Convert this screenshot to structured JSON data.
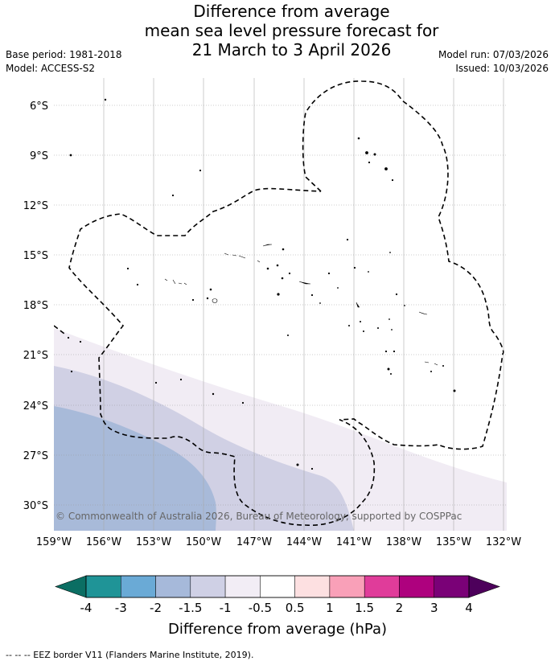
{
  "title": {
    "line1": "Difference from average",
    "line2": "mean sea level pressure forecast for",
    "line3": "21 March to 3 April 2026"
  },
  "meta": {
    "base_period": "Base period: 1981-2018",
    "model": "Model: ACCESS-S2",
    "model_run": "Model run: 07/03/2026",
    "issued": "Issued: 10/03/2026"
  },
  "map": {
    "lat_labels": [
      "6°S",
      "9°S",
      "12°S",
      "15°S",
      "18°S",
      "21°S",
      "24°S",
      "27°S",
      "30°S"
    ],
    "lon_labels": [
      "159°W",
      "156°W",
      "153°W",
      "150°W",
      "147°W",
      "144°W",
      "141°W",
      "138°W",
      "135°W",
      "132°W"
    ],
    "copyright": "© Commonwealth of Australia 2026, Bureau of Meteorology, supported by COSPPac",
    "band_colors": {
      "neg_1_to_neg_0_5": "#f1ecf4",
      "neg_1_5_to_neg_1": "#d0d0e4",
      "neg_2_to_neg_1_5": "#a8bad9"
    }
  },
  "colorbar": {
    "tick_labels": [
      "-4",
      "-3",
      "-2",
      "-1.5",
      "-1",
      "-0.5",
      "0.5",
      "1",
      "1.5",
      "2",
      "3",
      "4"
    ],
    "colors": [
      "#1f9497",
      "#6aaad6",
      "#a6b9da",
      "#cfd0e5",
      "#f2edf5",
      "#ffffff",
      "#fde0e1",
      "#f9a0b8",
      "#e03c9a",
      "#ae017e",
      "#7a0177"
    ],
    "under_color": "#0b6e63",
    "over_color": "#4d005b",
    "label": "Difference from average (hPa)"
  },
  "footer": {
    "eez_note": "--  --  -- EEZ border V11 (Flanders Marine Institute, 2019)."
  }
}
